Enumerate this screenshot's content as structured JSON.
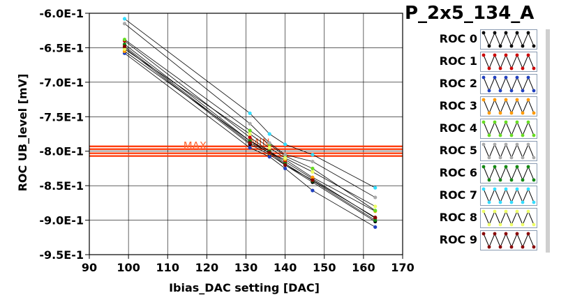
{
  "title": "P_2x5_134_A",
  "chart_data": {
    "type": "scatter",
    "title": "P_2x5_134_A",
    "xlabel": "Ibias_DAC setting [DAC]",
    "ylabel": "ROC UB_level [mV]",
    "xlim": [
      90,
      170
    ],
    "ylim": [
      -0.95,
      -0.6
    ],
    "xticks": [
      90,
      100,
      110,
      120,
      130,
      140,
      150,
      160,
      170
    ],
    "xtick_labels": [
      "90",
      "100",
      "110",
      "120",
      "130",
      "140",
      "150",
      "160",
      "170"
    ],
    "yticks": [
      -0.6,
      -0.65,
      -0.7,
      -0.75,
      -0.8,
      -0.85,
      -0.9,
      -0.95
    ],
    "ytick_labels": [
      "-6.0E-1",
      "-6.5E-1",
      "-7.0E-1",
      "-7.5E-1",
      "-8.0E-1",
      "-8.5E-1",
      "-9.0E-1",
      "-9.5E-1"
    ],
    "grid": true,
    "legend_position": "right",
    "series": [
      {
        "name": "ROC 0",
        "color": "#000000",
        "x": [
          99,
          131,
          136,
          140,
          147,
          163
        ],
        "y": [
          -0.65,
          -0.79,
          -0.805,
          -0.82,
          -0.845,
          -0.902
        ]
      },
      {
        "name": "ROC 1",
        "color": "#cc0000",
        "x": [
          99,
          131,
          136,
          140,
          147,
          163
        ],
        "y": [
          -0.64,
          -0.78,
          -0.8,
          -0.815,
          -0.84,
          -0.897
        ]
      },
      {
        "name": "ROC 2",
        "color": "#1f3fbf",
        "x": [
          99,
          131,
          136,
          140,
          147,
          163
        ],
        "y": [
          -0.658,
          -0.795,
          -0.808,
          -0.825,
          -0.857,
          -0.91
        ]
      },
      {
        "name": "ROC 3",
        "color": "#ff9900",
        "x": [
          99,
          131,
          136,
          140,
          147,
          163
        ],
        "y": [
          -0.655,
          -0.785,
          -0.803,
          -0.812,
          -0.838,
          -0.887
        ]
      },
      {
        "name": "ROC 4",
        "color": "#66dd22",
        "x": [
          99,
          131,
          136,
          140,
          147,
          163
        ],
        "y": [
          -0.638,
          -0.77,
          -0.79,
          -0.807,
          -0.825,
          -0.886
        ]
      },
      {
        "name": "ROC 5",
        "color": "#aaaaaa",
        "x": [
          99,
          131,
          136,
          140,
          147,
          163
        ],
        "y": [
          -0.615,
          -0.76,
          -0.788,
          -0.805,
          -0.815,
          -0.867
        ]
      },
      {
        "name": "ROC 6",
        "color": "#118811",
        "x": [
          99,
          131,
          136,
          140,
          147,
          163
        ],
        "y": [
          -0.645,
          -0.785,
          -0.8,
          -0.818,
          -0.843,
          -0.9
        ]
      },
      {
        "name": "ROC 7",
        "color": "#33ddff",
        "x": [
          99,
          131,
          136,
          140,
          147,
          163
        ],
        "y": [
          -0.608,
          -0.745,
          -0.775,
          -0.79,
          -0.805,
          -0.853
        ]
      },
      {
        "name": "ROC 8",
        "color": "#eeff66",
        "x": [
          99,
          131,
          136,
          140,
          147,
          163
        ],
        "y": [
          -0.652,
          -0.775,
          -0.795,
          -0.81,
          -0.83,
          -0.88
        ]
      },
      {
        "name": "ROC 9",
        "color": "#880000",
        "x": [
          99,
          131,
          136,
          140,
          147,
          163
        ],
        "y": [
          -0.648,
          -0.788,
          -0.802,
          -0.82,
          -0.842,
          -0.896
        ]
      }
    ],
    "hlines": [
      {
        "label": "MAX",
        "y": -0.795,
        "color": "#ff3300"
      },
      {
        "label": "MIN",
        "y": -0.805,
        "color": "#ff3300"
      }
    ]
  },
  "legend": {
    "items": [
      {
        "label": "ROC 0",
        "color": "#000000"
      },
      {
        "label": "ROC 1",
        "color": "#cc0000"
      },
      {
        "label": "ROC 2",
        "color": "#1f3fbf"
      },
      {
        "label": "ROC 3",
        "color": "#ff9900"
      },
      {
        "label": "ROC 4",
        "color": "#66dd22"
      },
      {
        "label": "ROC 5",
        "color": "#aaaaaa"
      },
      {
        "label": "ROC 6",
        "color": "#118811"
      },
      {
        "label": "ROC 7",
        "color": "#33ddff"
      },
      {
        "label": "ROC 8",
        "color": "#eeff66"
      },
      {
        "label": "ROC 9",
        "color": "#880000"
      }
    ]
  }
}
